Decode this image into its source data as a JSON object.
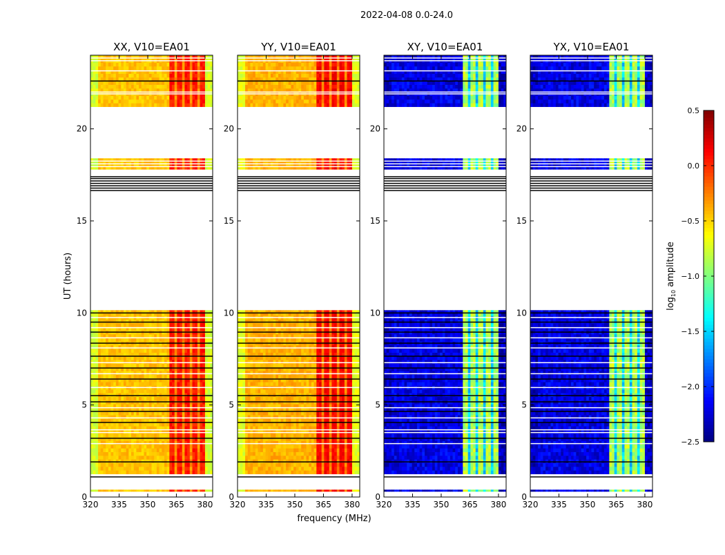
{
  "chart_data": {
    "type": "heatmap",
    "title": "2022-04-08 0.0-24.0",
    "xlabel": "frequency (MHz)",
    "ylabel": "UT (hours)",
    "xlim": [
      320,
      384
    ],
    "ylim": [
      0,
      24
    ],
    "xticks": [
      320,
      335,
      350,
      365,
      380
    ],
    "yticks": [
      0,
      5,
      10,
      15,
      20
    ],
    "colormap": "jet",
    "colorbar": {
      "label_main": "log",
      "label_sub": "10",
      "label_rest": " amplitude",
      "range": [
        -2.5,
        0.5
      ],
      "ticks": [
        "0.5",
        "0.0",
        "−0.5",
        "−1.0",
        "−1.5",
        "−2.0",
        "−2.5"
      ],
      "tick_values": [
        0.5,
        0.0,
        -0.5,
        -1.0,
        -1.5,
        -2.0,
        -2.5
      ]
    },
    "data_segments_hours": [
      [
        0.3,
        0.4
      ],
      [
        1.25,
        10.15
      ],
      [
        17.8,
        18.4
      ],
      [
        21.2,
        24.0
      ]
    ],
    "black_flag_lines_hours": [
      1.09,
      1.91,
      3.19,
      4.05,
      4.65,
      5.17,
      5.51,
      6.41,
      7.01,
      7.65,
      8.36,
      8.96,
      9.5,
      10.0,
      16.65,
      16.78,
      16.91,
      17.04,
      17.17,
      17.3,
      17.4,
      22.6
    ],
    "white_flag_lines_hours": [
      2.9,
      3.5,
      3.65,
      4.3,
      4.85,
      5.95,
      6.7,
      7.3,
      8.1,
      8.65,
      9.2,
      9.75,
      17.95,
      18.1,
      18.25,
      21.9,
      22.0,
      23.15,
      23.7,
      23.85
    ],
    "band_mhz": [
      362,
      380
    ],
    "stripe_mhz": [
      365,
      369,
      373,
      377
    ],
    "panels": [
      {
        "title": "XX, V10=EA01",
        "base": -0.45,
        "band": 0.05,
        "edge": -0.75,
        "stripe": -0.3
      },
      {
        "title": "YY, V10=EA01",
        "base": -0.4,
        "band": 0.12,
        "edge": -0.7,
        "stripe": -0.25
      },
      {
        "title": "XY, V10=EA01",
        "base": -2.2,
        "band": -0.85,
        "edge": -2.3,
        "stripe": -1.5
      },
      {
        "title": "YX, V10=EA01",
        "base": -2.2,
        "band": -0.85,
        "edge": -2.3,
        "stripe": -1.5
      }
    ]
  }
}
